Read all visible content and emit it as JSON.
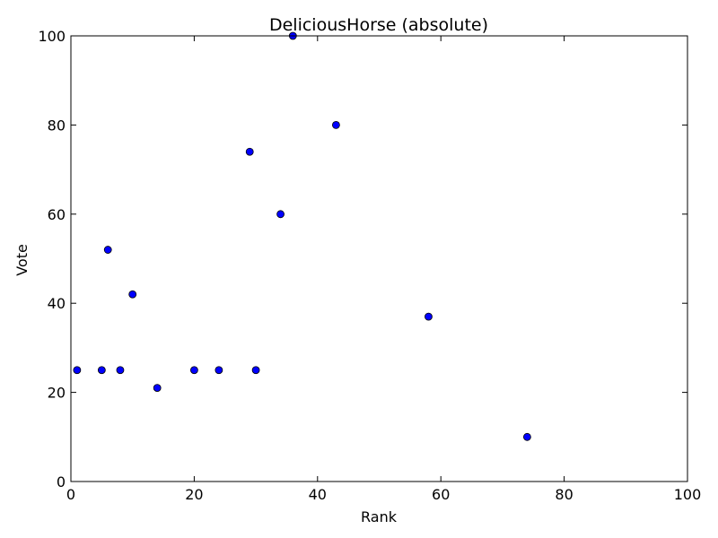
{
  "chart_data": {
    "type": "scatter",
    "title": "DeliciousHorse (absolute)",
    "xlabel": "Rank",
    "ylabel": "Vote",
    "xlim": [
      0,
      100
    ],
    "ylim": [
      0,
      100
    ],
    "xticks": [
      "0",
      "20",
      "40",
      "60",
      "80",
      "100"
    ],
    "yticks": [
      "0",
      "20",
      "40",
      "60",
      "80",
      "100"
    ],
    "grid": false,
    "marker_color": "#0000ff",
    "marker_edge_color": "#000000",
    "points": [
      {
        "x": 1,
        "y": 25
      },
      {
        "x": 5,
        "y": 25
      },
      {
        "x": 6,
        "y": 52
      },
      {
        "x": 8,
        "y": 25
      },
      {
        "x": 10,
        "y": 42
      },
      {
        "x": 14,
        "y": 21
      },
      {
        "x": 20,
        "y": 25
      },
      {
        "x": 24,
        "y": 25
      },
      {
        "x": 29,
        "y": 74
      },
      {
        "x": 30,
        "y": 25
      },
      {
        "x": 34,
        "y": 60
      },
      {
        "x": 36,
        "y": 100
      },
      {
        "x": 43,
        "y": 80
      },
      {
        "x": 58,
        "y": 37
      },
      {
        "x": 74,
        "y": 10
      }
    ]
  }
}
